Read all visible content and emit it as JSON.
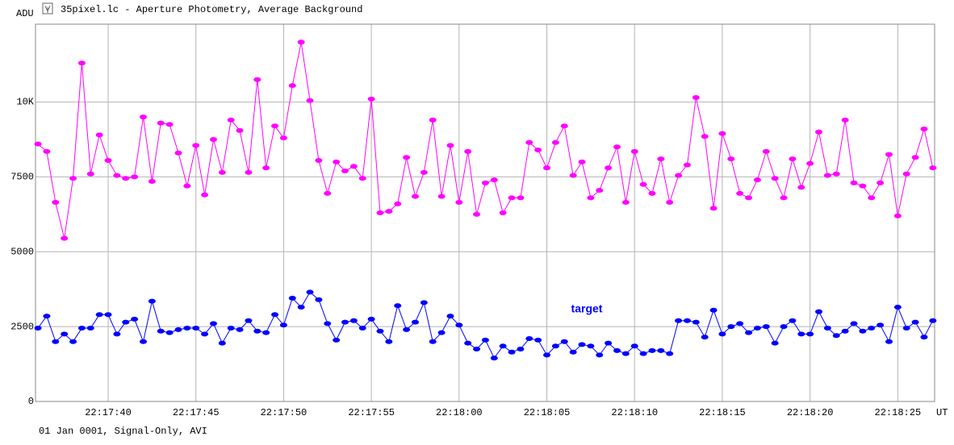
{
  "window_title": "35pixel.lc - Aperture Photometry, Average Background",
  "footer": "01 Jan 0001, Signal-Only, AVI",
  "chart_data": {
    "type": "line",
    "ylabel": "ADU",
    "xlabel": "UT",
    "annotations": [
      "target"
    ],
    "xlim": [
      80255.86,
      80307.1
    ],
    "ylim": [
      0,
      12600
    ],
    "grid": true,
    "xticks": [
      {
        "value": 80260,
        "label": "22:17:40"
      },
      {
        "value": 80265,
        "label": "22:17:45"
      },
      {
        "value": 80270,
        "label": "22:17:50"
      },
      {
        "value": 80275,
        "label": "22:17:55"
      },
      {
        "value": 80280,
        "label": "22:18:00"
      },
      {
        "value": 80285,
        "label": "22:18:05"
      },
      {
        "value": 80290,
        "label": "22:18:10"
      },
      {
        "value": 80295,
        "label": "22:18:15"
      },
      {
        "value": 80300,
        "label": "22:18:20"
      },
      {
        "value": 80305,
        "label": "22:18:25"
      }
    ],
    "yticks": [
      0,
      2500,
      5000,
      7500,
      {
        "value": 10000,
        "label": "10K"
      }
    ],
    "x": [
      80256,
      80256.5,
      80257,
      80257.5,
      80258,
      80258.5,
      80259,
      80259.5,
      80260,
      80260.5,
      80261,
      80261.5,
      80262,
      80262.5,
      80263,
      80263.5,
      80264,
      80264.5,
      80265,
      80265.5,
      80266,
      80266.5,
      80267,
      80267.5,
      80268,
      80268.5,
      80269,
      80269.5,
      80270,
      80270.5,
      80271,
      80271.5,
      80272,
      80272.5,
      80273,
      80273.5,
      80274,
      80274.5,
      80275,
      80275.5,
      80276,
      80276.5,
      80277,
      80277.5,
      80278,
      80278.5,
      80279,
      80279.5,
      80280,
      80280.5,
      80281,
      80281.5,
      80282,
      80282.5,
      80283,
      80283.5,
      80284,
      80284.5,
      80285,
      80285.5,
      80286,
      80286.5,
      80287,
      80287.5,
      80288,
      80288.5,
      80289,
      80289.5,
      80290,
      80290.5,
      80291,
      80291.5,
      80292,
      80292.5,
      80293,
      80293.5,
      80294,
      80294.5,
      80295,
      80295.5,
      80296,
      80296.5,
      80297,
      80297.5,
      80298,
      80298.5,
      80299,
      80299.5,
      80300,
      80300.5,
      80301,
      80301.5,
      80302,
      80302.5,
      80303,
      80303.5,
      80304,
      80304.5,
      80305,
      80305.5,
      80306,
      80306.5,
      80307
    ],
    "series": [
      {
        "color": "#ff00ff",
        "values": [
          8600,
          8350,
          6650,
          5450,
          7450,
          11300,
          7600,
          8900,
          8050,
          7550,
          7450,
          7500,
          9500,
          7350,
          9300,
          9250,
          8300,
          7200,
          8550,
          6900,
          8750,
          7650,
          9400,
          9050,
          7650,
          10750,
          7800,
          9200,
          8800,
          10550,
          12000,
          10050,
          8050,
          6950,
          8000,
          7700,
          7850,
          7450,
          10100,
          6300,
          6350,
          6600,
          8150,
          6850,
          7650,
          9400,
          6850,
          8550,
          6650,
          8350,
          6250,
          7300,
          7400,
          6300,
          6800,
          6800,
          8650,
          8400,
          7800,
          8650,
          9200,
          7550,
          8000,
          6800,
          7050,
          7800,
          8500,
          6650,
          8350,
          7250,
          6950,
          8100,
          6650,
          7550,
          7900,
          10150,
          8850,
          6450,
          8950,
          8100,
          6950,
          6800,
          7400,
          8350,
          7450,
          6800,
          8100,
          7150,
          7950,
          9000,
          7550,
          7600,
          9400,
          7300,
          7200,
          6800,
          7300,
          8250,
          6200,
          7600,
          8150,
          9100,
          7800
        ]
      },
      {
        "name": "target",
        "color": "#0000ff",
        "values": [
          2450,
          2850,
          2000,
          2250,
          2000,
          2450,
          2450,
          2900,
          2900,
          2250,
          2650,
          2750,
          2000,
          3350,
          2350,
          2300,
          2400,
          2450,
          2450,
          2250,
          2600,
          1950,
          2450,
          2400,
          2700,
          2350,
          2300,
          2900,
          2550,
          3450,
          3150,
          3650,
          3400,
          2600,
          2050,
          2650,
          2700,
          2450,
          2750,
          2350,
          2000,
          3200,
          2400,
          2650,
          3300,
          2000,
          2300,
          2850,
          2550,
          1950,
          1750,
          2050,
          1450,
          1850,
          1650,
          1750,
          2100,
          2050,
          1550,
          1850,
          2000,
          1650,
          1900,
          1850,
          1550,
          1950,
          1700,
          1600,
          1850,
          1600,
          1700,
          1700,
          1600,
          2700,
          2700,
          2650,
          2150,
          3050,
          2250,
          2500,
          2600,
          2300,
          2450,
          2500,
          1950,
          2500,
          2700,
          2250,
          2250,
          3000,
          2450,
          2200,
          2350,
          2600,
          2350,
          2450,
          2550,
          2000,
          3150,
          2450,
          2650,
          2150,
          2700
        ]
      }
    ]
  }
}
